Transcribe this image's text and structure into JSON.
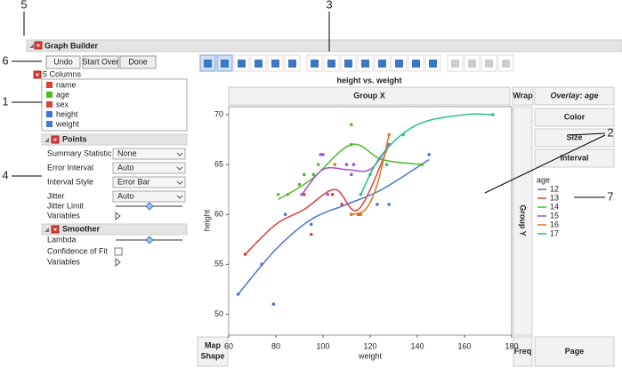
{
  "callouts": [
    "5",
    "3",
    "6",
    "1",
    "4",
    "2",
    "7"
  ],
  "panel": {
    "title": "Graph Builder",
    "buttons": [
      "Undo",
      "Start Over",
      "Done"
    ],
    "columns_label": "5 Columns",
    "columns": [
      "name",
      "age",
      "sex",
      "height",
      "weight"
    ],
    "points": {
      "title": "Points",
      "rows": [
        {
          "label": "Summary Statistic",
          "value": "None"
        },
        {
          "label": "Error Interval",
          "value": "Auto"
        },
        {
          "label": "Interval Style",
          "value": "Error Bar"
        },
        {
          "label": "Jitter",
          "value": "Auto"
        }
      ],
      "jitter_limit": "Jitter Limit",
      "variables": "Variables"
    },
    "smoother": {
      "title": "Smoother",
      "lambda": "Lambda",
      "confidence": "Confidence of Fit",
      "variables": "Variables"
    }
  },
  "zones": {
    "group_x": "Group X",
    "wrap": "Wrap",
    "overlay": "Overlay: age",
    "color": "Color",
    "size": "Size",
    "interval": "Interval",
    "group_y": "Group Y",
    "map_shape": [
      "Map",
      "Shape"
    ],
    "freq": "Freq",
    "page": "Page"
  },
  "chart_data": {
    "type": "scatter",
    "title": "height vs. weight",
    "x_label": "weight",
    "y_label": "height",
    "xlim": [
      60,
      180
    ],
    "ylim": [
      47.9,
      70.8
    ],
    "xticks": [
      60,
      80,
      100,
      120,
      140,
      160,
      180
    ],
    "yticks": [
      50,
      55,
      60,
      65,
      70
    ],
    "legend_title": "age",
    "series": [
      {
        "name": "12",
        "color": "#4a74d4",
        "x": [
          64,
          74,
          79,
          84,
          95,
          123,
          128,
          145
        ],
        "values": [
          52,
          55,
          51,
          60,
          59,
          61,
          61,
          66
        ],
        "smooth_x": [
          64,
          80,
          95,
          110,
          125,
          145
        ],
        "smooth_y": [
          52,
          56.5,
          59.5,
          61,
          62.5,
          65.5
        ]
      },
      {
        "name": "13",
        "color": "#d8413a",
        "x": [
          67,
          92,
          95,
          104,
          112,
          115,
          108,
          128
        ],
        "values": [
          56,
          62,
          58,
          62,
          60,
          60,
          61,
          67
        ],
        "smooth_x": [
          67,
          80,
          92,
          105,
          115,
          128
        ],
        "smooth_y": [
          56,
          59,
          60.5,
          62.5,
          60.5,
          67
        ]
      },
      {
        "name": "14",
        "color": "#4fba27",
        "x": [
          81,
          85,
          90,
          92,
          96,
          98,
          112,
          112,
          142
        ],
        "values": [
          62,
          62,
          63,
          64,
          64,
          65,
          69,
          67,
          65
        ],
        "smooth_x": [
          81,
          95,
          112,
          125,
          142
        ],
        "smooth_y": [
          61.5,
          63.5,
          67,
          65.5,
          65
        ]
      },
      {
        "name": "15",
        "color": "#a64fd4",
        "x": [
          91,
          99,
          100,
          102,
          110,
          112,
          113,
          128
        ],
        "values": [
          62,
          66,
          66,
          62,
          65,
          64,
          65,
          67
        ],
        "smooth_x": [
          91,
          100,
          110,
          120,
          128
        ],
        "smooth_y": [
          62,
          64.5,
          64.5,
          64.5,
          67
        ]
      },
      {
        "name": "16",
        "color": "#d97b1f",
        "x": [
          105,
          112,
          116,
          128
        ],
        "values": [
          65,
          60,
          60,
          68
        ],
        "smooth_x": [
          112,
          118,
          123,
          128
        ],
        "smooth_y": [
          60,
          60.5,
          63,
          68
        ]
      },
      {
        "name": "17",
        "color": "#2bbf8c",
        "x": [
          116,
          120,
          127,
          134,
          172
        ],
        "values": [
          62,
          64,
          65,
          68,
          70
        ],
        "smooth_x": [
          116,
          125,
          140,
          160,
          172
        ],
        "smooth_y": [
          62,
          66,
          69,
          70,
          70
        ]
      }
    ]
  }
}
